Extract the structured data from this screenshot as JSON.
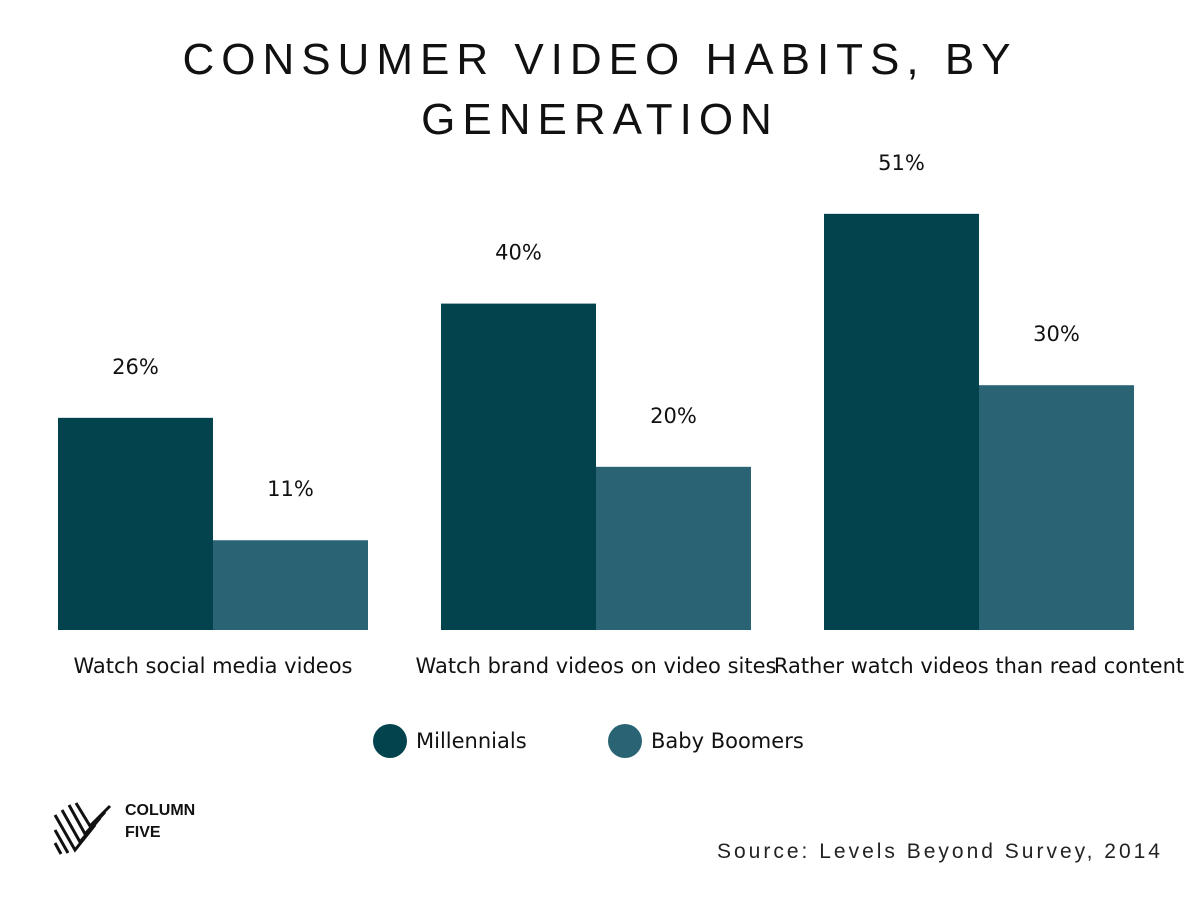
{
  "chart_data": {
    "type": "bar",
    "title": "CONSUMER VIDEO HABITS, BY GENERATION",
    "categories": [
      "Watch social media videos",
      "Watch brand videos on video sites",
      "Rather watch videos than read content"
    ],
    "series": [
      {
        "name": "Millennials",
        "color": "#03434e",
        "values": [
          26,
          40,
          51
        ],
        "value_labels": [
          "26%",
          "40%",
          "51%"
        ]
      },
      {
        "name": "Baby Boomers",
        "color": "#2a6474",
        "values": [
          11,
          20,
          30
        ],
        "value_labels": [
          "11%",
          "20%",
          "30%"
        ]
      }
    ],
    "source": "Source: Levels Beyond Survey, 2014",
    "logo": "COLUMN FIVE"
  }
}
